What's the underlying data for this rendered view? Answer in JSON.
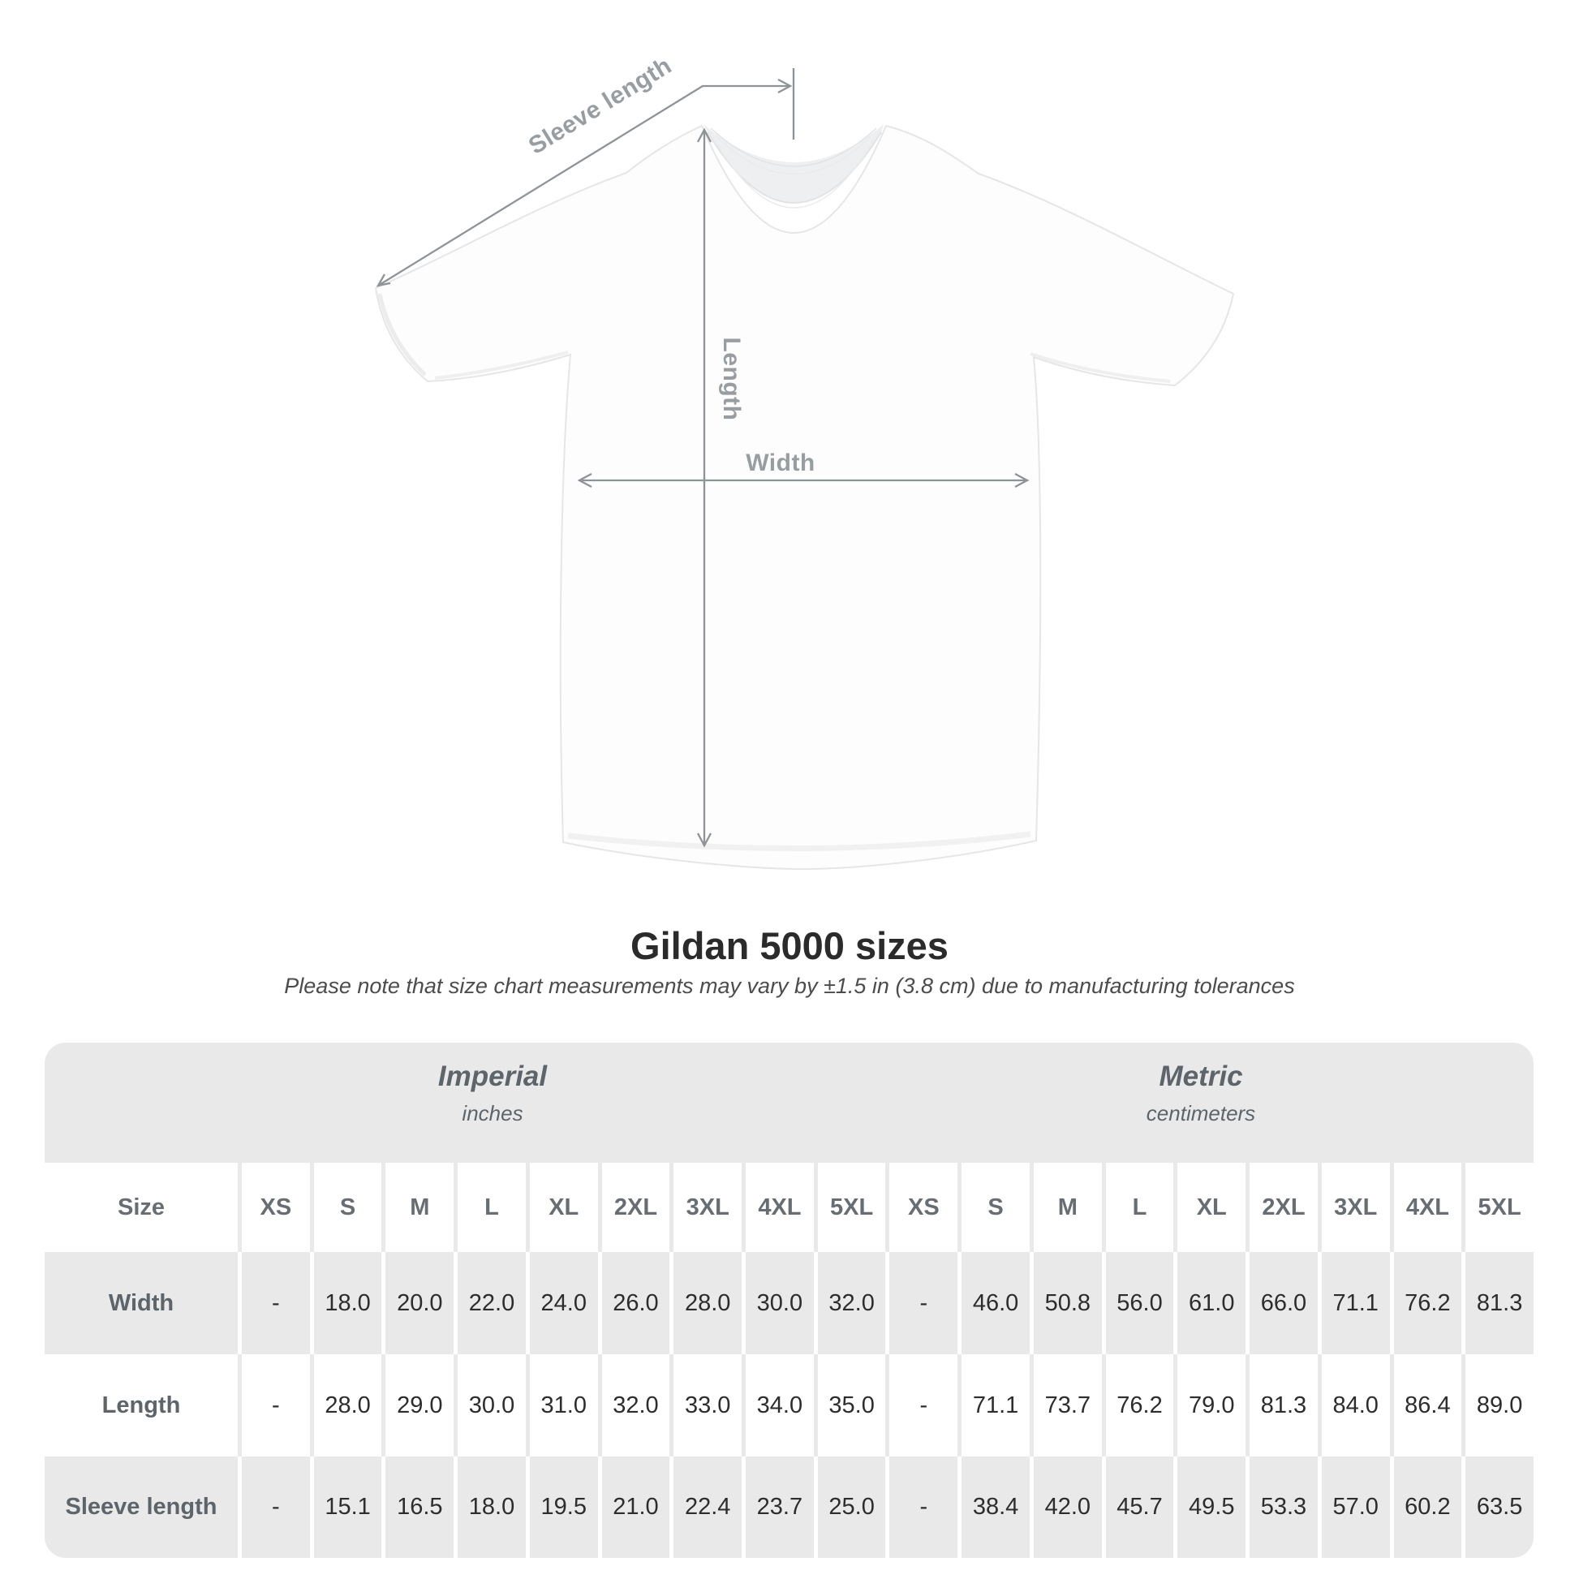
{
  "title": "Gildan 5000 sizes",
  "subtitle": "Please note that size chart measurements may vary by ±1.5 in (3.8 cm) due to manufacturing tolerances",
  "diagram": {
    "labels": {
      "sleeve_length": "Sleeve length",
      "length": "Length",
      "width": "Width"
    },
    "line_color": "#8e9397",
    "label_color": "#989da2"
  },
  "chart_data": {
    "type": "table",
    "title": "Gildan 5000 sizes",
    "size_header": "Size",
    "sections": [
      {
        "label": "Imperial",
        "unit": "inches"
      },
      {
        "label": "Metric",
        "unit": "centimeters"
      }
    ],
    "columns": [
      "XS",
      "S",
      "M",
      "L",
      "XL",
      "2XL",
      "3XL",
      "4XL",
      "5XL",
      "XS",
      "S",
      "M",
      "L",
      "XL",
      "2XL",
      "3XL",
      "4XL",
      "5XL"
    ],
    "rows": [
      {
        "label": "Width",
        "values": [
          "-",
          "18.0",
          "20.0",
          "22.0",
          "24.0",
          "26.0",
          "28.0",
          "30.0",
          "32.0",
          "-",
          "46.0",
          "50.8",
          "56.0",
          "61.0",
          "66.0",
          "71.1",
          "76.2",
          "81.3"
        ]
      },
      {
        "label": "Length",
        "values": [
          "-",
          "28.0",
          "29.0",
          "30.0",
          "31.0",
          "32.0",
          "33.0",
          "34.0",
          "35.0",
          "-",
          "71.1",
          "73.7",
          "76.2",
          "79.0",
          "81.3",
          "84.0",
          "86.4",
          "89.0"
        ]
      },
      {
        "label": "Sleeve length",
        "values": [
          "-",
          "15.1",
          "16.5",
          "18.0",
          "19.5",
          "21.0",
          "22.4",
          "23.7",
          "25.0",
          "-",
          "38.4",
          "42.0",
          "45.7",
          "49.5",
          "53.3",
          "57.0",
          "60.2",
          "63.5"
        ]
      }
    ]
  },
  "colors": {
    "band": "#e9e9e9",
    "cell_gray": "#e9e9e9",
    "cell_white": "#ffffff",
    "header_text": "#676d72",
    "label_text": "#5d646a",
    "value_text": "#2d2d2d",
    "title_text": "#2b2b2b",
    "subtitle_text": "#4c4c4c"
  }
}
